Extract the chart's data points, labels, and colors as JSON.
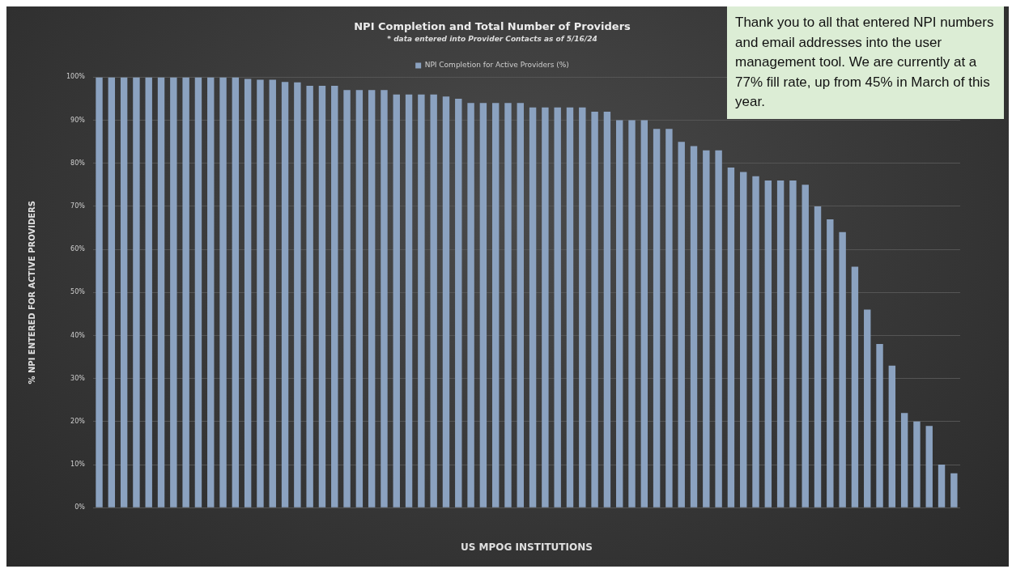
{
  "chart_data": {
    "type": "bar",
    "title": "NPI Completion and Total Number of Providers",
    "subtitle": "* data entered into Provider Contacts as of 5/16/24",
    "xlabel": "US MPOG INSTITUTIONS",
    "ylabel": "% NPI ENTERED FOR ACTIVE PROVIDERS",
    "categories": [
      null,
      null,
      null,
      null,
      null,
      null,
      null,
      null,
      null,
      null,
      null,
      null,
      null,
      null,
      null,
      null,
      null,
      null,
      null,
      null,
      null,
      null,
      null,
      null,
      null,
      null,
      null,
      null,
      null,
      null,
      null,
      null,
      null,
      null,
      null,
      null,
      null,
      null,
      null,
      null,
      null,
      null,
      null,
      null,
      null,
      null,
      null,
      null,
      null,
      null,
      null,
      null,
      null,
      null,
      null,
      null,
      null,
      null,
      null,
      null,
      null,
      null,
      null,
      null,
      null,
      null,
      null,
      null,
      null,
      null
    ],
    "series": [
      {
        "name": "NPI Completion for Active Providers (%)",
        "color": "#8ba2c0",
        "values": [
          100,
          100,
          100,
          100,
          100,
          100,
          100,
          100,
          100,
          100,
          100,
          100,
          99.6,
          99.4,
          99.4,
          98.9,
          98.8,
          98,
          98,
          98,
          97,
          97,
          97,
          97,
          96,
          96,
          96,
          96,
          95.5,
          95,
          94,
          94,
          94,
          94,
          94,
          93,
          93,
          93,
          93,
          93,
          92,
          92,
          90,
          90,
          90,
          88,
          88,
          85,
          84,
          83,
          83,
          79,
          78,
          77,
          76,
          76,
          76,
          75,
          70,
          67,
          64,
          56,
          46,
          38,
          33,
          22,
          20,
          19,
          10,
          8
        ]
      }
    ],
    "ylim": [
      0,
      100
    ],
    "yticks": [
      {
        "value": 0,
        "label": "0%"
      },
      {
        "value": 10,
        "label": "10%"
      },
      {
        "value": 20,
        "label": "20%"
      },
      {
        "value": 30,
        "label": "30%"
      },
      {
        "value": 40,
        "label": "40%"
      },
      {
        "value": 50,
        "label": "50%"
      },
      {
        "value": 60,
        "label": "60%"
      },
      {
        "value": 70,
        "label": "70%"
      },
      {
        "value": 80,
        "label": "80%"
      },
      {
        "value": 90,
        "label": "90%"
      },
      {
        "value": 100,
        "label": "100%"
      }
    ],
    "grid": "y",
    "legend": "top",
    "annotations": [
      "Thank you to all that entered NPI numbers and email addresses into the user management tool. We are currently at a 77% fill rate, up from 45% in March of this year."
    ]
  }
}
